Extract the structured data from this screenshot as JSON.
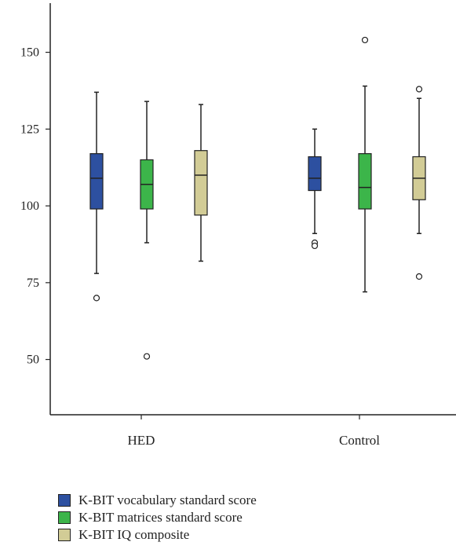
{
  "chart_data": {
    "type": "boxplot",
    "title": "",
    "xlabel": "",
    "ylabel": "",
    "ylim": [
      32,
      166
    ],
    "yticks": [
      50,
      75,
      100,
      125,
      150
    ],
    "grid": false,
    "legend_position": "bottom-left",
    "categories": [
      "HED",
      "Control"
    ],
    "series": [
      {
        "name": "K-BIT vocabulary standard score",
        "color": "#2d50a0",
        "boxes": [
          {
            "category": "HED",
            "min": 78,
            "q1": 99,
            "median": 109,
            "q3": 117,
            "max": 137,
            "outliers": [
              70
            ]
          },
          {
            "category": "Control",
            "min": 91,
            "q1": 105,
            "median": 109,
            "q3": 116,
            "max": 125,
            "outliers": [
              88,
              87
            ]
          }
        ]
      },
      {
        "name": "K-BIT matrices standard score",
        "color": "#3cb54a",
        "boxes": [
          {
            "category": "HED",
            "min": 88,
            "q1": 99,
            "median": 107,
            "q3": 115,
            "max": 134,
            "outliers": [
              51
            ]
          },
          {
            "category": "Control",
            "min": 72,
            "q1": 99,
            "median": 106,
            "q3": 117,
            "max": 139,
            "outliers": [
              154
            ]
          }
        ]
      },
      {
        "name": "K-BIT IQ composite",
        "color": "#d2cc96",
        "boxes": [
          {
            "category": "HED",
            "min": 82,
            "q1": 97,
            "median": 110,
            "q3": 118,
            "max": 133,
            "outliers": []
          },
          {
            "category": "Control",
            "min": 91,
            "q1": 102,
            "median": 109,
            "q3": 116,
            "max": 135,
            "outliers": [
              138,
              77
            ]
          }
        ]
      }
    ]
  },
  "legend": {
    "items": [
      {
        "label": "K-BIT vocabulary standard score",
        "color": "#2d50a0"
      },
      {
        "label": "K-BIT matrices standard score",
        "color": "#3cb54a"
      },
      {
        "label": "K-BIT IQ composite",
        "color": "#d2cc96"
      }
    ]
  }
}
